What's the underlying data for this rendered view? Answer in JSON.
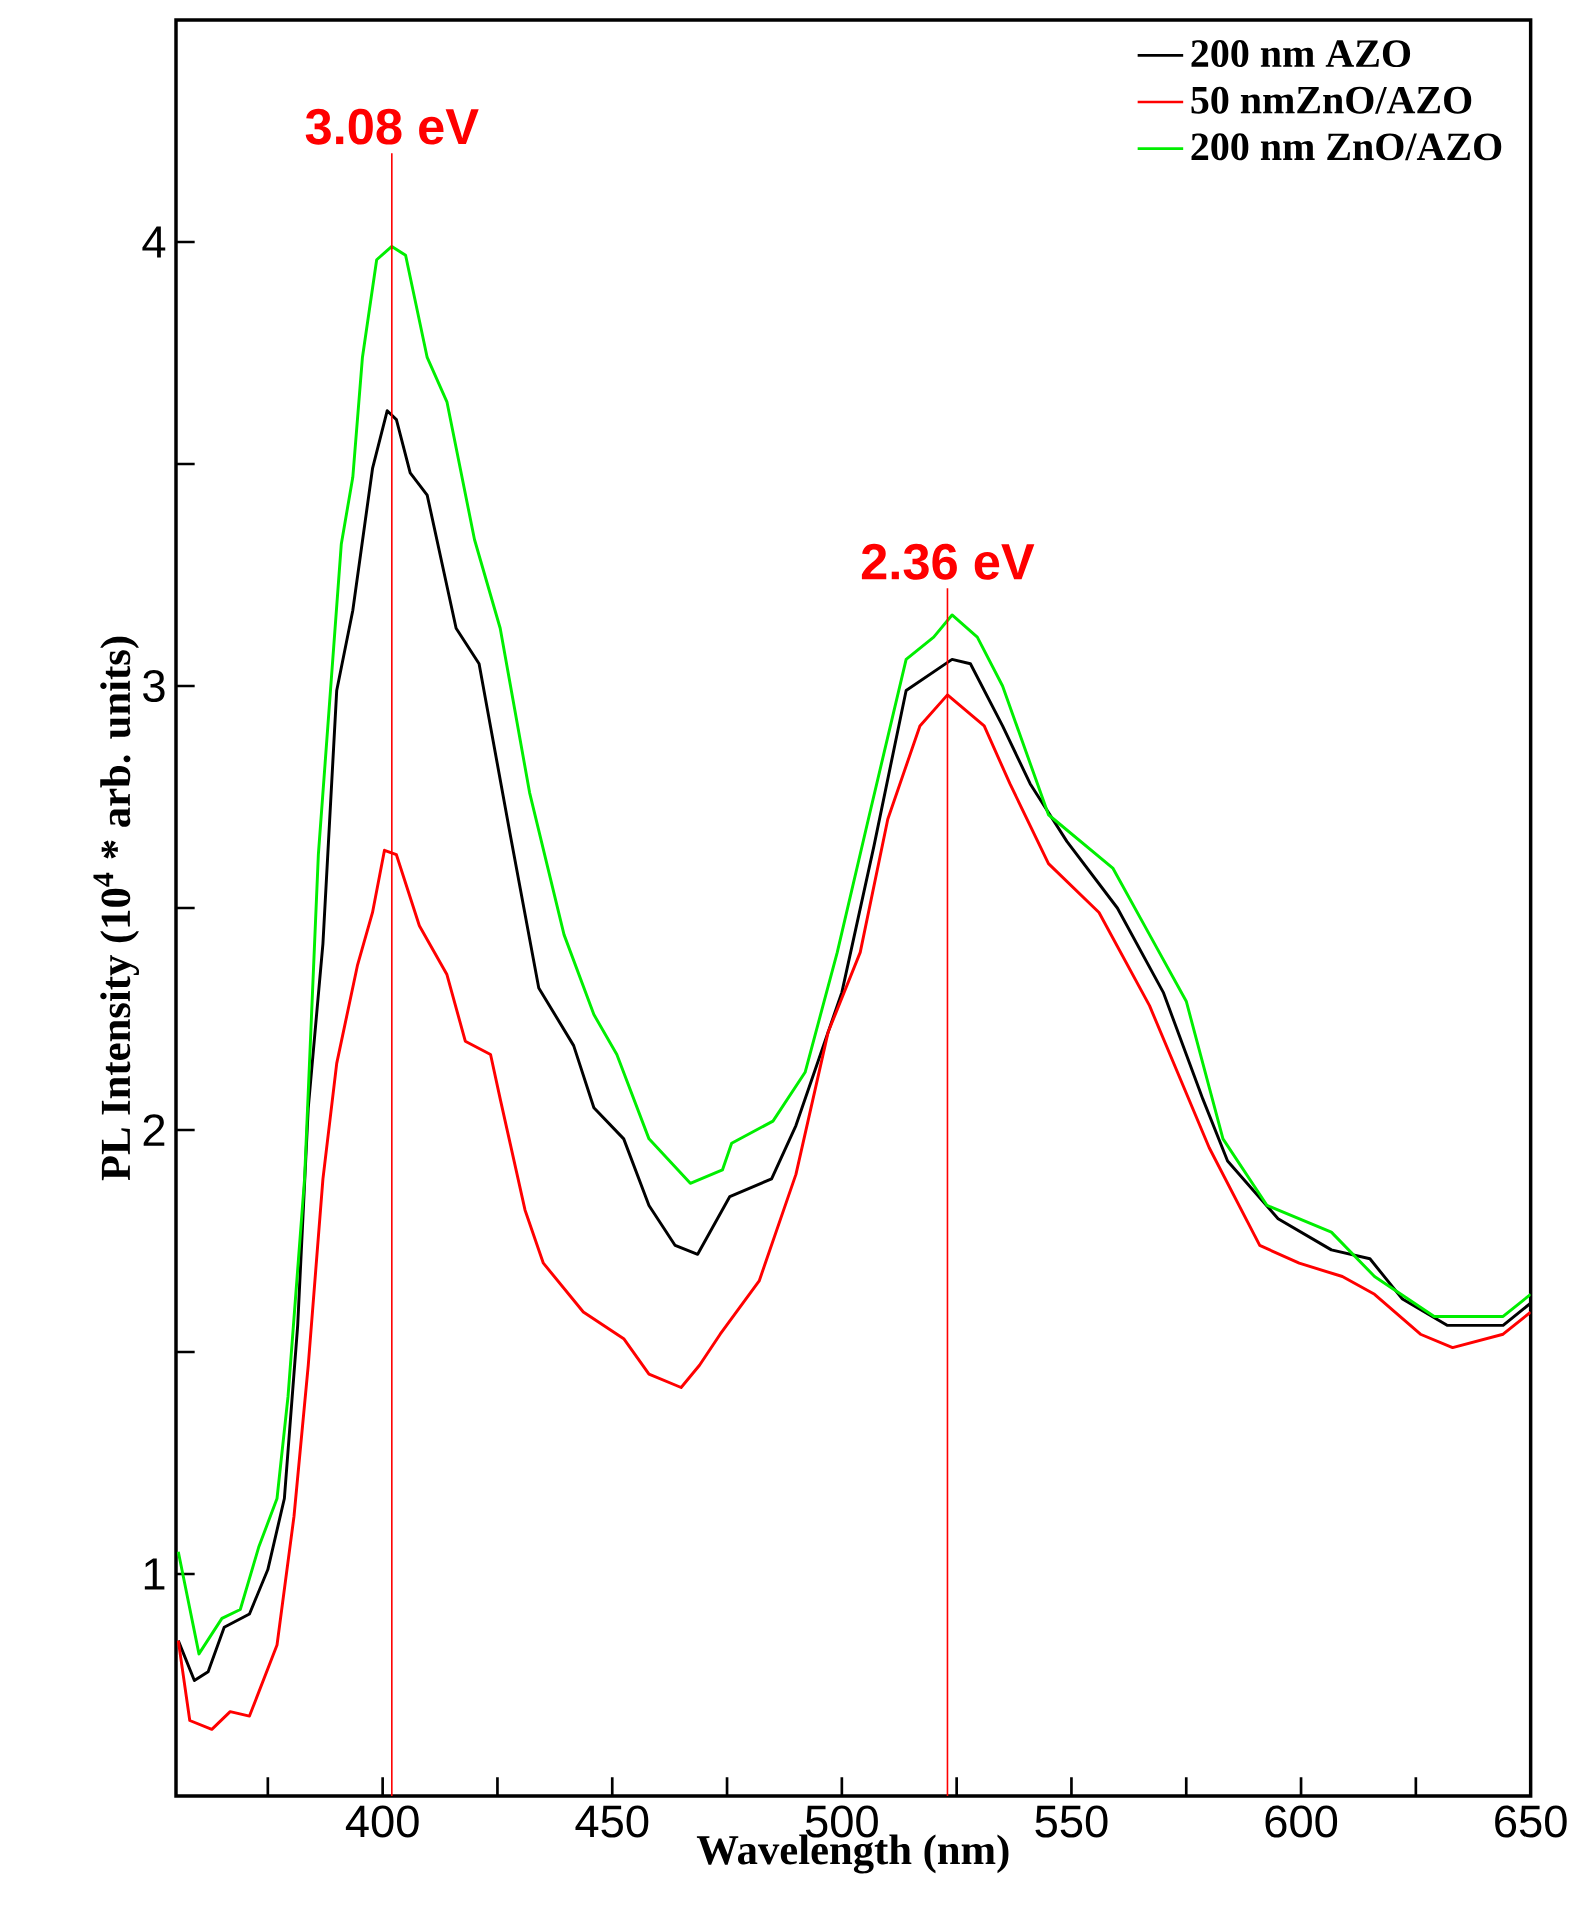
{
  "chart_data": {
    "type": "line",
    "xlabel": "Wavelength (nm)",
    "ylabel": "PL Intensity (10$^{4}$ * arb. units)",
    "xlim": [
      355,
      650
    ],
    "ylim": [
      0.5,
      4.5
    ],
    "xticks": [
      {
        "value": 375,
        "label": null
      },
      400,
      {
        "value": 425,
        "label": null
      },
      450,
      {
        "value": 475,
        "label": null
      },
      500,
      {
        "value": 525,
        "label": null
      },
      550,
      {
        "value": 575,
        "label": null
      },
      600,
      {
        "value": 625,
        "label": null
      },
      650
    ],
    "yticks": [
      1,
      {
        "value": 1.5,
        "label": null
      },
      2,
      {
        "value": 2.5,
        "label": null
      },
      3,
      {
        "value": 3.5,
        "label": null
      },
      4
    ],
    "legend": "top right",
    "marker": "none",
    "line_style": "solid",
    "grid": false,
    "ref_lines": [
      {
        "axis": "x",
        "value": 402,
        "color": "#ff0000"
      },
      {
        "axis": "x",
        "value": 523,
        "color": "#ff0000"
      }
    ],
    "annotations": [
      {
        "text": "3.08 eV",
        "x": 402,
        "y": 4.2
      },
      {
        "text": "2.36 eV",
        "x": 523,
        "y": 3.22
      }
    ],
    "series": [
      {
        "name": "200 nm AZO",
        "color": "#000000",
        "x": [
          355.5,
          359,
          362,
          365.5,
          371,
          375,
          378.6,
          381.5,
          383.8,
          387,
          390,
          393.5,
          397.8,
          401,
          403,
          406,
          409.7,
          416,
          421,
          427.7,
          434,
          441.6,
          446,
          452.5,
          458,
          463.7,
          468.6,
          475.6,
          484.7,
          490,
          500,
          507,
          514,
          524,
          528,
          535,
          541,
          549,
          560,
          570,
          578.6,
          584,
          595,
          606.6,
          615,
          622,
          631.8,
          644,
          650
        ],
        "values": [
          0.85,
          0.76,
          0.78,
          0.88,
          0.91,
          1.01,
          1.17,
          1.56,
          2.05,
          2.42,
          2.99,
          3.17,
          3.49,
          3.62,
          3.6,
          3.48,
          3.43,
          3.13,
          3.05,
          2.67,
          2.32,
          2.19,
          2.05,
          1.98,
          1.83,
          1.74,
          1.72,
          1.85,
          1.89,
          2.01,
          2.31,
          2.64,
          2.99,
          3.06,
          3.05,
          2.91,
          2.78,
          2.65,
          2.5,
          2.31,
          2.07,
          1.93,
          1.8,
          1.73,
          1.71,
          1.62,
          1.56,
          1.56,
          1.61
        ]
      },
      {
        "name": "50 nmZnO/AZO",
        "color": "#ff0000",
        "x": [
          355.5,
          358,
          362.8,
          366.8,
          371,
          377,
          380.7,
          383.8,
          387,
          390,
          394.5,
          397.8,
          400.4,
          403,
          408,
          414,
          418,
          423.5,
          425.6,
          431,
          435,
          443.7,
          452.5,
          458,
          465,
          469,
          473.5,
          482,
          490,
          497,
          504,
          510,
          517,
          523,
          531,
          536.6,
          545,
          556,
          567,
          580,
          591,
          599.6,
          609,
          616,
          626,
          633,
          644,
          650
        ],
        "values": [
          0.85,
          0.67,
          0.65,
          0.69,
          0.68,
          0.84,
          1.13,
          1.47,
          1.89,
          2.15,
          2.37,
          2.49,
          2.63,
          2.62,
          2.46,
          2.35,
          2.2,
          2.17,
          2.07,
          1.82,
          1.7,
          1.59,
          1.53,
          1.45,
          1.42,
          1.47,
          1.54,
          1.66,
          1.9,
          2.22,
          2.4,
          2.7,
          2.91,
          2.98,
          2.91,
          2.78,
          2.6,
          2.49,
          2.28,
          1.96,
          1.74,
          1.7,
          1.67,
          1.63,
          1.54,
          1.51,
          1.54,
          1.59
        ]
      },
      {
        "name": "200 nm ZnO/AZO",
        "color": "#00ee00",
        "x": [
          355.5,
          360,
          365,
          369,
          373,
          377,
          379.4,
          383,
          386,
          391,
          393.5,
          395.6,
          398.7,
          402,
          405,
          409.7,
          414,
          420,
          425.6,
          432,
          439.5,
          446,
          451,
          458,
          467,
          474,
          476,
          485,
          492,
          499,
          506,
          514,
          520,
          524,
          529.5,
          535,
          545,
          559,
          567,
          575,
          583,
          592.6,
          606.6,
          616,
          629,
          644,
          650
        ],
        "values": [
          1.05,
          0.82,
          0.9,
          0.92,
          1.06,
          1.17,
          1.4,
          1.89,
          2.62,
          3.32,
          3.47,
          3.74,
          3.96,
          3.99,
          3.97,
          3.74,
          3.64,
          3.33,
          3.13,
          2.76,
          2.44,
          2.26,
          2.17,
          1.98,
          1.88,
          1.91,
          1.97,
          2.02,
          2.13,
          2.4,
          2.71,
          3.06,
          3.11,
          3.16,
          3.11,
          3.0,
          2.71,
          2.59,
          2.44,
          2.29,
          1.98,
          1.83,
          1.77,
          1.67,
          1.58,
          1.58,
          1.63
        ]
      }
    ]
  }
}
